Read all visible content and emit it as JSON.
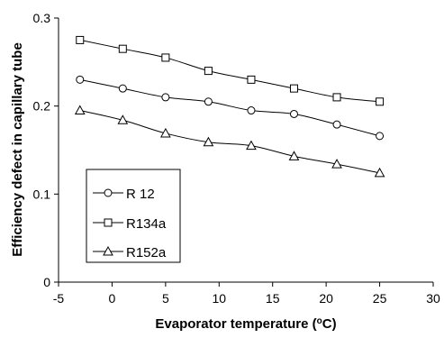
{
  "chart_data": {
    "type": "line",
    "title": "",
    "xlabel_main": "Evaporator temperature (",
    "xlabel_sup": "o",
    "xlabel_end": "C)",
    "ylabel": "Efficiency defect in capillary tube",
    "xlim": [
      -5,
      30
    ],
    "ylim": [
      0,
      0.3
    ],
    "x_ticks": [
      -5,
      0,
      5,
      10,
      15,
      20,
      25,
      30
    ],
    "y_ticks": [
      0,
      0.1,
      0.2,
      0.3
    ],
    "x_tick_labels": [
      "-5",
      "0",
      "5",
      "10",
      "15",
      "20",
      "25",
      "30"
    ],
    "y_tick_labels": [
      "0",
      "0.1",
      "0.2",
      "0.3"
    ],
    "grid": false,
    "legend_position": "bottom-left",
    "x": [
      -3,
      1,
      5,
      9,
      13,
      17,
      21,
      25
    ],
    "series": [
      {
        "name": "R 12",
        "marker": "circle",
        "values": [
          0.23,
          0.22,
          0.21,
          0.205,
          0.195,
          0.191,
          0.179,
          0.166
        ]
      },
      {
        "name": "R134a",
        "marker": "square",
        "values": [
          0.275,
          0.265,
          0.255,
          0.24,
          0.23,
          0.22,
          0.21,
          0.205
        ]
      },
      {
        "name": "R152a",
        "marker": "triangle",
        "values": [
          0.195,
          0.184,
          0.169,
          0.159,
          0.155,
          0.143,
          0.134,
          0.124
        ]
      }
    ]
  }
}
